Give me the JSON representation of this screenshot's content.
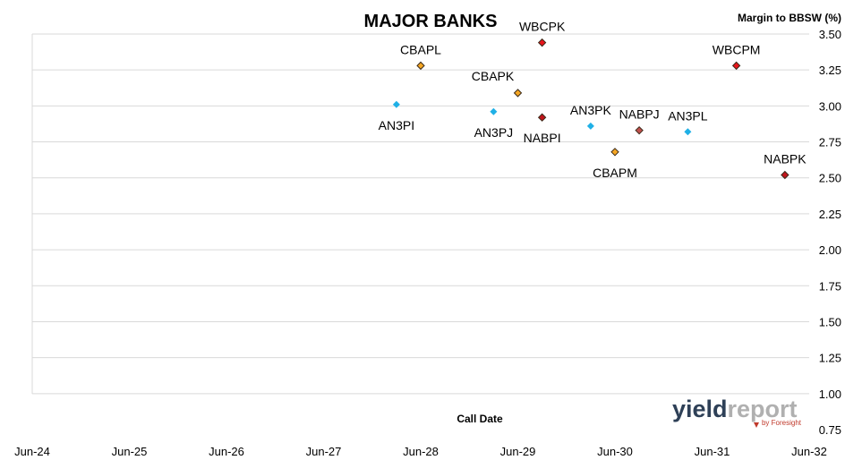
{
  "chart_data": {
    "type": "scatter",
    "title": "MAJOR BANKS",
    "ylabel": "Margin to BBSW (%)",
    "xlabel": "Call Date",
    "ylim": [
      0.75,
      3.5
    ],
    "y_ticks": [
      "0.75",
      "1.00",
      "1.25",
      "1.50",
      "1.75",
      "2.00",
      "2.25",
      "2.50",
      "2.75",
      "3.00",
      "3.25",
      "3.50"
    ],
    "x_ticks": [
      "Jun-24",
      "Jun-25",
      "Jun-26",
      "Jun-27",
      "Jun-28",
      "Jun-29",
      "Jun-30",
      "Jun-31",
      "Jun-32"
    ],
    "xlim": [
      "2024-06",
      "2032-06"
    ],
    "grid": true,
    "points": [
      {
        "label": "WBCPK",
        "x": "2029-09",
        "y": 3.44,
        "color": "#e8141b",
        "label_pos": "above"
      },
      {
        "label": "CBAPL",
        "x": "2028-06",
        "y": 3.28,
        "color": "#f5a623",
        "label_pos": "above"
      },
      {
        "label": "WBCPM",
        "x": "2031-09",
        "y": 3.28,
        "color": "#e8141b",
        "label_pos": "above"
      },
      {
        "label": "CBAPK",
        "x": "2029-06",
        "y": 3.09,
        "color": "#f5a623",
        "label_pos": "above-left"
      },
      {
        "label": "AN3PI",
        "x": "2028-03",
        "y": 3.01,
        "color": "#1fb0e6",
        "label_pos": "below"
      },
      {
        "label": "AN3PJ",
        "x": "2029-03",
        "y": 2.96,
        "color": "#1fb0e6",
        "label_pos": "below"
      },
      {
        "label": "NABPI",
        "x": "2029-09",
        "y": 2.92,
        "color": "#c0141b",
        "label_pos": "below"
      },
      {
        "label": "AN3PK",
        "x": "2030-03",
        "y": 2.86,
        "color": "#1fb0e6",
        "label_pos": "above"
      },
      {
        "label": "NABPJ",
        "x": "2030-09",
        "y": 2.83,
        "color": "#c0504d",
        "label_pos": "above"
      },
      {
        "label": "AN3PL",
        "x": "2031-03",
        "y": 2.82,
        "color": "#1fb0e6",
        "label_pos": "above"
      },
      {
        "label": "CBAPM",
        "x": "2030-06",
        "y": 2.68,
        "color": "#f5a623",
        "label_pos": "below"
      },
      {
        "label": "NABPK",
        "x": "2032-03",
        "y": 2.52,
        "color": "#c0141b",
        "label_pos": "above"
      }
    ]
  },
  "logo": {
    "text_yield": "yield",
    "text_report": "report",
    "byline": "by Foresight",
    "color_yield": "#2e4057",
    "color_report": "#b0b0b0"
  }
}
